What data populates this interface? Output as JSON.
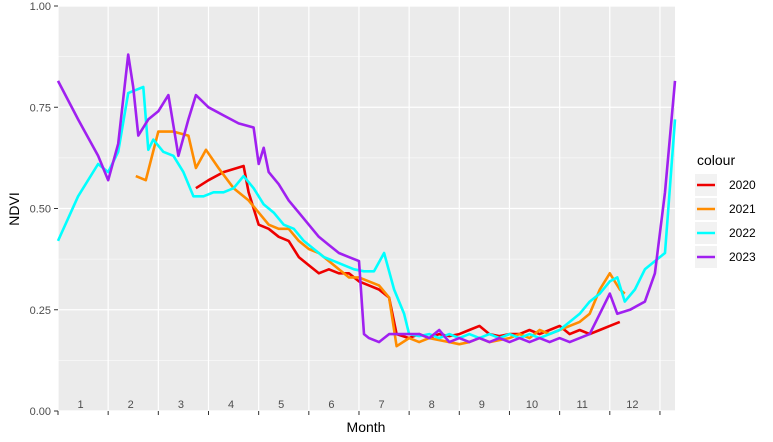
{
  "chart_data": {
    "type": "line",
    "xlabel": "Month",
    "ylabel": "NDVI",
    "ylim": [
      0,
      1
    ],
    "y_ticks": [
      "0.00",
      "0.25",
      "0.50",
      "0.75",
      "1.00"
    ],
    "x_range": [
      0,
      12.3
    ],
    "month_labels": [
      "1",
      "2",
      "3",
      "4",
      "5",
      "6",
      "7",
      "8",
      "9",
      "10",
      "11",
      "12"
    ],
    "grid": true,
    "legend": {
      "title": "colour",
      "position": "right"
    },
    "series": [
      {
        "name": "2020",
        "color": "#EE0000",
        "points": [
          [
            2.75,
            0.55
          ],
          [
            3.0,
            0.57
          ],
          [
            3.3,
            0.59
          ],
          [
            3.7,
            0.605
          ],
          [
            3.8,
            0.54
          ],
          [
            4.0,
            0.46
          ],
          [
            4.2,
            0.45
          ],
          [
            4.4,
            0.43
          ],
          [
            4.6,
            0.42
          ],
          [
            4.8,
            0.38
          ],
          [
            5.0,
            0.36
          ],
          [
            5.2,
            0.34
          ],
          [
            5.4,
            0.35
          ],
          [
            5.6,
            0.34
          ],
          [
            5.8,
            0.34
          ],
          [
            6.0,
            0.32
          ],
          [
            6.2,
            0.31
          ],
          [
            6.4,
            0.3
          ],
          [
            6.6,
            0.28
          ],
          [
            6.75,
            0.19
          ],
          [
            7.0,
            0.18
          ],
          [
            7.2,
            0.19
          ],
          [
            7.4,
            0.18
          ],
          [
            7.6,
            0.19
          ],
          [
            7.8,
            0.185
          ],
          [
            8.0,
            0.19
          ],
          [
            8.2,
            0.2
          ],
          [
            8.4,
            0.21
          ],
          [
            8.6,
            0.19
          ],
          [
            8.8,
            0.185
          ],
          [
            9.0,
            0.19
          ],
          [
            9.2,
            0.19
          ],
          [
            9.4,
            0.2
          ],
          [
            9.6,
            0.19
          ],
          [
            9.8,
            0.2
          ],
          [
            10.0,
            0.21
          ],
          [
            10.2,
            0.19
          ],
          [
            10.4,
            0.2
          ],
          [
            10.6,
            0.19
          ],
          [
            10.8,
            0.2
          ],
          [
            11.0,
            0.21
          ],
          [
            11.2,
            0.22
          ]
        ]
      },
      {
        "name": "2021",
        "color": "#FF8C00",
        "points": [
          [
            1.55,
            0.58
          ],
          [
            1.75,
            0.57
          ],
          [
            2.0,
            0.69
          ],
          [
            2.3,
            0.69
          ],
          [
            2.6,
            0.68
          ],
          [
            2.75,
            0.6
          ],
          [
            2.95,
            0.645
          ],
          [
            3.2,
            0.6
          ],
          [
            3.5,
            0.55
          ],
          [
            3.8,
            0.52
          ],
          [
            4.0,
            0.49
          ],
          [
            4.2,
            0.46
          ],
          [
            4.4,
            0.45
          ],
          [
            4.6,
            0.45
          ],
          [
            4.8,
            0.42
          ],
          [
            5.0,
            0.4
          ],
          [
            5.2,
            0.39
          ],
          [
            5.4,
            0.37
          ],
          [
            5.6,
            0.35
          ],
          [
            5.8,
            0.33
          ],
          [
            6.0,
            0.33
          ],
          [
            6.2,
            0.32
          ],
          [
            6.4,
            0.31
          ],
          [
            6.6,
            0.28
          ],
          [
            6.75,
            0.16
          ],
          [
            7.0,
            0.18
          ],
          [
            7.2,
            0.17
          ],
          [
            7.4,
            0.18
          ],
          [
            7.6,
            0.175
          ],
          [
            7.8,
            0.17
          ],
          [
            8.0,
            0.165
          ],
          [
            8.2,
            0.17
          ],
          [
            8.4,
            0.18
          ],
          [
            8.6,
            0.17
          ],
          [
            8.8,
            0.175
          ],
          [
            9.0,
            0.18
          ],
          [
            9.2,
            0.19
          ],
          [
            9.4,
            0.18
          ],
          [
            9.6,
            0.2
          ],
          [
            9.8,
            0.19
          ],
          [
            10.0,
            0.2
          ],
          [
            10.2,
            0.21
          ],
          [
            10.4,
            0.22
          ],
          [
            10.6,
            0.24
          ],
          [
            10.8,
            0.3
          ],
          [
            11.0,
            0.34
          ],
          [
            11.2,
            0.3
          ],
          [
            11.3,
            0.29
          ]
        ]
      },
      {
        "name": "2022",
        "color": "#00FFFF",
        "points": [
          [
            0.0,
            0.42
          ],
          [
            0.4,
            0.53
          ],
          [
            0.8,
            0.61
          ],
          [
            1.0,
            0.59
          ],
          [
            1.2,
            0.64
          ],
          [
            1.4,
            0.785
          ],
          [
            1.7,
            0.8
          ],
          [
            1.8,
            0.645
          ],
          [
            1.9,
            0.67
          ],
          [
            2.1,
            0.64
          ],
          [
            2.3,
            0.63
          ],
          [
            2.5,
            0.59
          ],
          [
            2.7,
            0.53
          ],
          [
            2.9,
            0.53
          ],
          [
            3.1,
            0.54
          ],
          [
            3.3,
            0.54
          ],
          [
            3.5,
            0.55
          ],
          [
            3.7,
            0.58
          ],
          [
            3.9,
            0.55
          ],
          [
            4.1,
            0.51
          ],
          [
            4.3,
            0.49
          ],
          [
            4.5,
            0.46
          ],
          [
            4.7,
            0.45
          ],
          [
            4.9,
            0.42
          ],
          [
            5.1,
            0.4
          ],
          [
            5.3,
            0.38
          ],
          [
            5.5,
            0.37
          ],
          [
            5.7,
            0.36
          ],
          [
            5.9,
            0.35
          ],
          [
            6.1,
            0.345
          ],
          [
            6.3,
            0.345
          ],
          [
            6.5,
            0.39
          ],
          [
            6.7,
            0.3
          ],
          [
            6.9,
            0.24
          ],
          [
            7.0,
            0.19
          ],
          [
            7.2,
            0.185
          ],
          [
            7.4,
            0.19
          ],
          [
            7.6,
            0.18
          ],
          [
            7.8,
            0.19
          ],
          [
            8.0,
            0.18
          ],
          [
            8.2,
            0.19
          ],
          [
            8.4,
            0.18
          ],
          [
            8.6,
            0.19
          ],
          [
            8.8,
            0.18
          ],
          [
            9.0,
            0.19
          ],
          [
            9.2,
            0.18
          ],
          [
            9.4,
            0.19
          ],
          [
            9.6,
            0.18
          ],
          [
            9.8,
            0.19
          ],
          [
            10.0,
            0.2
          ],
          [
            10.2,
            0.22
          ],
          [
            10.4,
            0.24
          ],
          [
            10.6,
            0.27
          ],
          [
            10.8,
            0.29
          ],
          [
            11.0,
            0.32
          ],
          [
            11.15,
            0.33
          ],
          [
            11.3,
            0.27
          ],
          [
            11.5,
            0.3
          ],
          [
            11.7,
            0.35
          ],
          [
            11.9,
            0.37
          ],
          [
            12.1,
            0.39
          ],
          [
            12.3,
            0.72
          ]
        ]
      },
      {
        "name": "2023",
        "color": "#A020F0",
        "points": [
          [
            0.0,
            0.815
          ],
          [
            0.4,
            0.72
          ],
          [
            0.8,
            0.63
          ],
          [
            1.0,
            0.57
          ],
          [
            1.2,
            0.66
          ],
          [
            1.4,
            0.88
          ],
          [
            1.5,
            0.8
          ],
          [
            1.6,
            0.68
          ],
          [
            1.8,
            0.72
          ],
          [
            2.0,
            0.74
          ],
          [
            2.2,
            0.78
          ],
          [
            2.4,
            0.63
          ],
          [
            2.6,
            0.72
          ],
          [
            2.75,
            0.78
          ],
          [
            3.0,
            0.75
          ],
          [
            3.3,
            0.73
          ],
          [
            3.6,
            0.71
          ],
          [
            3.9,
            0.7
          ],
          [
            4.0,
            0.61
          ],
          [
            4.1,
            0.65
          ],
          [
            4.2,
            0.59
          ],
          [
            4.4,
            0.56
          ],
          [
            4.6,
            0.52
          ],
          [
            4.8,
            0.49
          ],
          [
            5.0,
            0.46
          ],
          [
            5.2,
            0.43
          ],
          [
            5.4,
            0.41
          ],
          [
            5.6,
            0.39
          ],
          [
            5.8,
            0.38
          ],
          [
            6.0,
            0.37
          ],
          [
            6.1,
            0.19
          ],
          [
            6.2,
            0.18
          ],
          [
            6.4,
            0.17
          ],
          [
            6.6,
            0.19
          ],
          [
            6.8,
            0.19
          ],
          [
            7.0,
            0.19
          ],
          [
            7.2,
            0.19
          ],
          [
            7.4,
            0.18
          ],
          [
            7.6,
            0.2
          ],
          [
            7.8,
            0.17
          ],
          [
            8.0,
            0.18
          ],
          [
            8.2,
            0.17
          ],
          [
            8.4,
            0.18
          ],
          [
            8.6,
            0.17
          ],
          [
            8.8,
            0.18
          ],
          [
            9.0,
            0.17
          ],
          [
            9.2,
            0.18
          ],
          [
            9.4,
            0.17
          ],
          [
            9.6,
            0.18
          ],
          [
            9.8,
            0.17
          ],
          [
            10.0,
            0.18
          ],
          [
            10.2,
            0.17
          ],
          [
            10.4,
            0.18
          ],
          [
            10.6,
            0.19
          ],
          [
            10.8,
            0.24
          ],
          [
            11.0,
            0.29
          ],
          [
            11.15,
            0.24
          ],
          [
            11.4,
            0.25
          ],
          [
            11.7,
            0.27
          ],
          [
            11.9,
            0.34
          ],
          [
            12.1,
            0.54
          ],
          [
            12.3,
            0.815
          ]
        ]
      }
    ]
  }
}
